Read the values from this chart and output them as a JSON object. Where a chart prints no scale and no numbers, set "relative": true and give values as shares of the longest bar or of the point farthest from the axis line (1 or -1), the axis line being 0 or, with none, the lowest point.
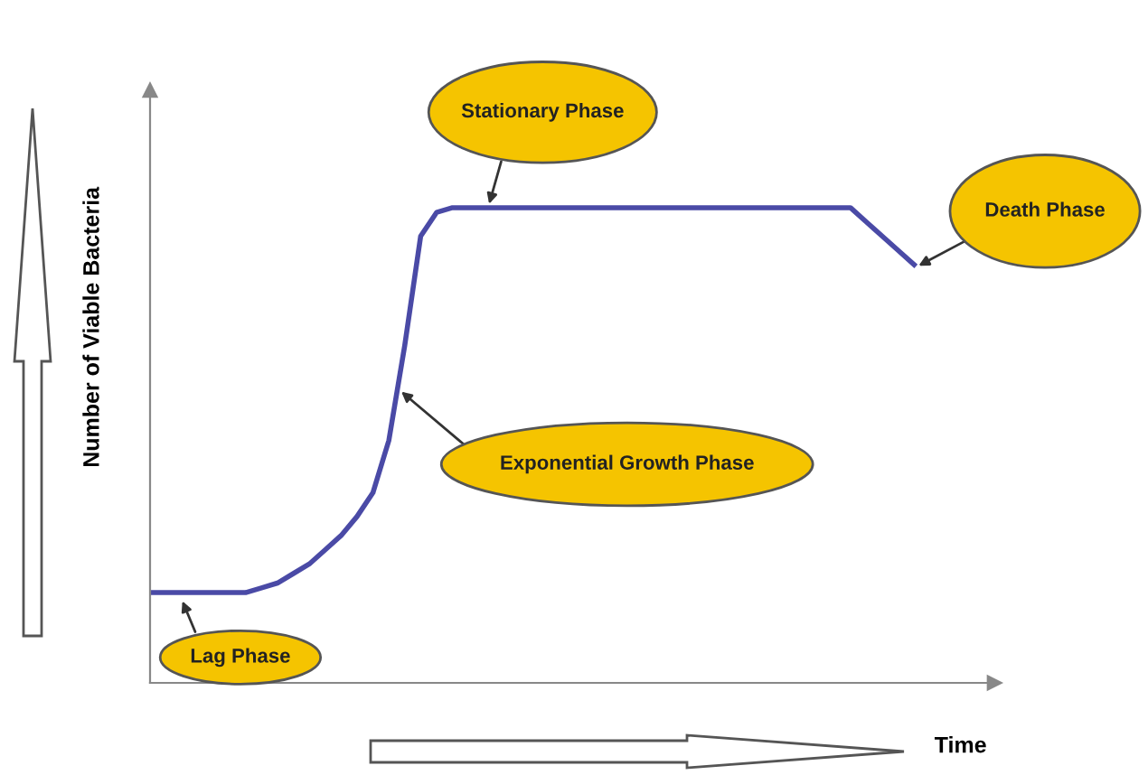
{
  "chart_data": {
    "type": "line",
    "relative": true,
    "tick_labels": false,
    "line_style": "solid",
    "xlabel": "Time",
    "ylabel": "Number of Viable Bacteria",
    "categories": [
      null,
      null,
      null,
      null,
      null,
      null,
      null,
      null,
      null,
      null,
      null,
      null,
      null,
      null,
      null,
      null,
      null,
      null,
      null,
      null,
      null,
      null,
      null,
      null,
      null,
      null,
      null,
      null,
      null,
      null,
      null,
      null,
      null,
      null,
      null,
      null,
      null,
      null,
      null,
      null,
      null,
      null,
      null,
      null,
      null,
      null,
      null,
      null,
      null
    ],
    "series": [
      {
        "color": "#4a4aa6",
        "values": [
          0.19,
          0.19,
          0.19,
          0.19,
          0.19,
          0.19,
          0.19,
          0.2,
          0.21,
          0.23,
          0.25,
          0.28,
          0.31,
          0.35,
          0.4,
          0.51,
          0.71,
          0.94,
          0.99,
          1,
          1,
          1,
          1,
          1,
          1,
          1,
          1,
          1,
          1,
          1,
          1,
          1,
          1,
          1,
          1,
          1,
          1,
          1,
          1,
          1,
          1,
          1,
          1,
          1,
          1,
          0.97,
          0.94,
          0.91,
          0.88
        ]
      }
    ],
    "annotations": [
      "Stationary Phase",
      "Death Phase",
      "Exponential Growth Phase",
      "Lag Phase"
    ]
  }
}
